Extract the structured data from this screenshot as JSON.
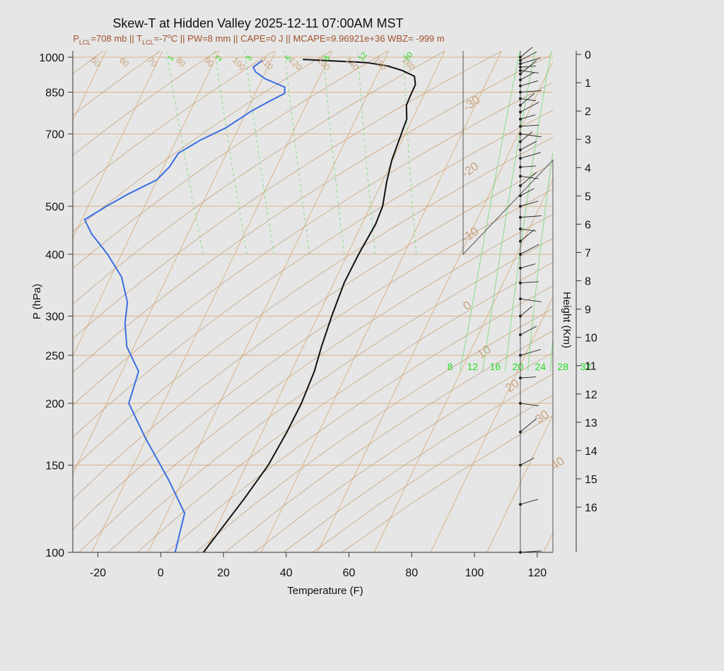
{
  "title": "Skew-T at Hidden Valley 2025-12-11 07:00AM MST",
  "subtitle": {
    "plcl_sym": "P",
    "plcl_sub": "LCL",
    "plcl_val": "=708 mb || ",
    "tlcl_sym": "T",
    "tlcl_sub": "LCL",
    "tlcl_val": "=-7",
    "deg": "o",
    "rest": "C || PW=8 mm || CAPE=0 J || MCAPE=9.96921e+36 WBZ= -999 m"
  },
  "colors": {
    "temperature": "#111111",
    "dewpoint": "#3a6ee0",
    "isotherm": "#d9b48a",
    "adiabat": "#c9a27c",
    "mixing": "#7ddc7d",
    "wind": "#222222"
  },
  "chart_data": {
    "type": "line",
    "xlabel": "Temperature (F)",
    "ylabel": "P (hPa)",
    "y2label": "Height (Km)",
    "xlim": [
      -28,
      125
    ],
    "ylim": [
      1030,
      100
    ],
    "y_scale": "log",
    "x_ticks": [
      -20,
      0,
      20,
      40,
      60,
      80,
      100,
      120
    ],
    "y_ticks": [
      1000,
      850,
      700,
      500,
      400,
      300,
      250,
      200,
      150,
      100
    ],
    "height_ticks": [
      0,
      1,
      2,
      3,
      4,
      5,
      6,
      7,
      8,
      9,
      10,
      11,
      12,
      13,
      14,
      15,
      16
    ],
    "series": [
      {
        "key": "temperature",
        "points": [
          {
            "p": 990,
            "t": 44
          },
          {
            "p": 975,
            "t": 64
          },
          {
            "p": 960,
            "t": 70
          },
          {
            "p": 940,
            "t": 74
          },
          {
            "p": 915,
            "t": 77
          },
          {
            "p": 880,
            "t": 76
          },
          {
            "p": 840,
            "t": 73
          },
          {
            "p": 800,
            "t": 70
          },
          {
            "p": 750,
            "t": 68
          },
          {
            "p": 700,
            "t": 64
          },
          {
            "p": 620,
            "t": 57
          },
          {
            "p": 560,
            "t": 52
          },
          {
            "p": 500,
            "t": 47
          },
          {
            "p": 460,
            "t": 42
          },
          {
            "p": 400,
            "t": 32
          },
          {
            "p": 350,
            "t": 23
          },
          {
            "p": 300,
            "t": 14
          },
          {
            "p": 260,
            "t": 6
          },
          {
            "p": 232,
            "t": 0
          },
          {
            "p": 200,
            "t": -9
          },
          {
            "p": 175,
            "t": -18
          },
          {
            "p": 150,
            "t": -29
          },
          {
            "p": 128,
            "t": -42
          },
          {
            "p": 100,
            "t": -63
          }
        ]
      },
      {
        "key": "dewpoint",
        "points": [
          {
            "p": 985,
            "t": 31
          },
          {
            "p": 970,
            "t": 29
          },
          {
            "p": 955,
            "t": 27
          },
          {
            "p": 935,
            "t": 27
          },
          {
            "p": 905,
            "t": 29
          },
          {
            "p": 870,
            "t": 34
          },
          {
            "p": 845,
            "t": 33
          },
          {
            "p": 820,
            "t": 28
          },
          {
            "p": 780,
            "t": 20
          },
          {
            "p": 720,
            "t": 9
          },
          {
            "p": 680,
            "t": -1
          },
          {
            "p": 640,
            "t": -10
          },
          {
            "p": 600,
            "t": -15
          },
          {
            "p": 565,
            "t": -21
          },
          {
            "p": 530,
            "t": -32
          },
          {
            "p": 500,
            "t": -41
          },
          {
            "p": 470,
            "t": -50
          },
          {
            "p": 440,
            "t": -50
          },
          {
            "p": 400,
            "t": -48
          },
          {
            "p": 360,
            "t": -47
          },
          {
            "p": 320,
            "t": -49
          },
          {
            "p": 290,
            "t": -53
          },
          {
            "p": 260,
            "t": -56
          },
          {
            "p": 232,
            "t": -56
          },
          {
            "p": 200,
            "t": -64
          },
          {
            "p": 170,
            "t": -64
          },
          {
            "p": 140,
            "t": -63
          },
          {
            "p": 120,
            "t": -63
          },
          {
            "p": 100,
            "t": -72
          }
        ]
      }
    ],
    "isotherm_labels_c": [
      -30,
      -20,
      -10,
      0,
      10,
      20,
      30,
      40
    ],
    "upper_isotherm_labels_c": [
      50,
      60,
      70,
      80,
      90,
      100,
      110,
      120,
      130,
      140,
      150,
      160
    ],
    "adiabat_labels_c": [
      40,
      30,
      20,
      10,
      0,
      -10,
      -20,
      -30
    ],
    "right_temp_labels_c": [
      -30,
      -20,
      -10,
      0,
      10,
      20,
      30,
      40
    ],
    "moist_adiabat_labels": [
      8,
      12,
      16,
      20,
      24,
      28,
      32
    ],
    "mixing_ratio_labels": [
      1,
      2,
      3,
      5,
      8,
      12,
      20
    ],
    "wind_pressures": [
      1000,
      985,
      970,
      955,
      940,
      925,
      900,
      875,
      850,
      825,
      800,
      775,
      750,
      725,
      700,
      675,
      650,
      625,
      600,
      575,
      550,
      525,
      500,
      475,
      450,
      425,
      400,
      375,
      350,
      325,
      300,
      275,
      250,
      225,
      200,
      175,
      150,
      125,
      100
    ]
  }
}
